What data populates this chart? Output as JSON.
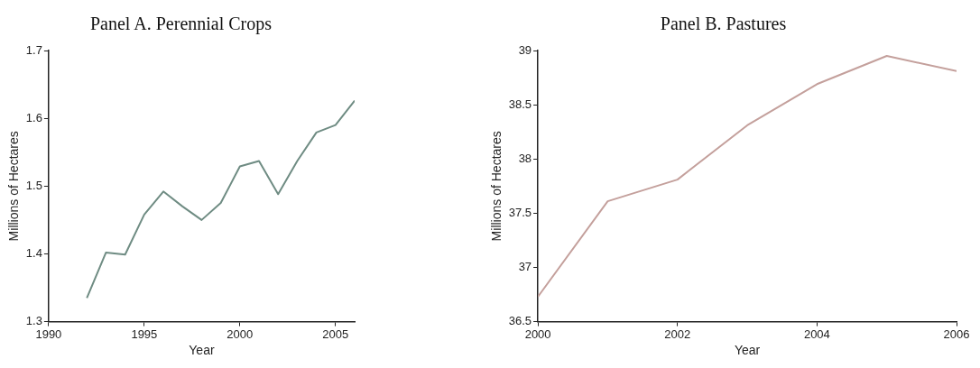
{
  "chart_data": [
    {
      "type": "line",
      "title": "Panel A. Perennial Crops",
      "xlabel": "Year",
      "ylabel": "Millions of Hectares",
      "x": [
        1992,
        1993,
        1994,
        1995,
        1996,
        1997,
        1998,
        1999,
        2000,
        2001,
        2002,
        2003,
        2004,
        2005,
        2006
      ],
      "series": [
        {
          "color": "#6f8c83",
          "values": [
            1.335,
            1.402,
            1.399,
            1.458,
            1.492,
            1.47,
            1.45,
            1.475,
            1.529,
            1.537,
            1.488,
            1.537,
            1.579,
            1.59,
            1.626
          ]
        }
      ],
      "xlim": [
        1990,
        2006
      ],
      "xticks": [
        1990,
        1995,
        2000,
        2005
      ],
      "ylim": [
        1.3,
        1.7
      ],
      "yticks": [
        1.3,
        1.4,
        1.5,
        1.6,
        1.7
      ],
      "grid": false,
      "legend": false,
      "marker": "none",
      "line_style": "solid"
    },
    {
      "type": "line",
      "title": "Panel B. Pastures",
      "xlabel": "Year",
      "ylabel": "Millions of Hectares",
      "x": [
        2000,
        2001,
        2002,
        2003,
        2004,
        2005,
        2006
      ],
      "series": [
        {
          "color": "#c4a09c",
          "values": [
            36.73,
            37.61,
            37.81,
            38.31,
            38.69,
            38.95,
            38.81
          ]
        }
      ],
      "xlim": [
        2000,
        2006
      ],
      "xticks": [
        2000,
        2002,
        2004,
        2006
      ],
      "ylim": [
        36.5,
        39
      ],
      "yticks": [
        36.5,
        37,
        37.5,
        38,
        38.5,
        39
      ],
      "grid": false,
      "legend": false,
      "marker": "none",
      "line_style": "solid"
    }
  ]
}
